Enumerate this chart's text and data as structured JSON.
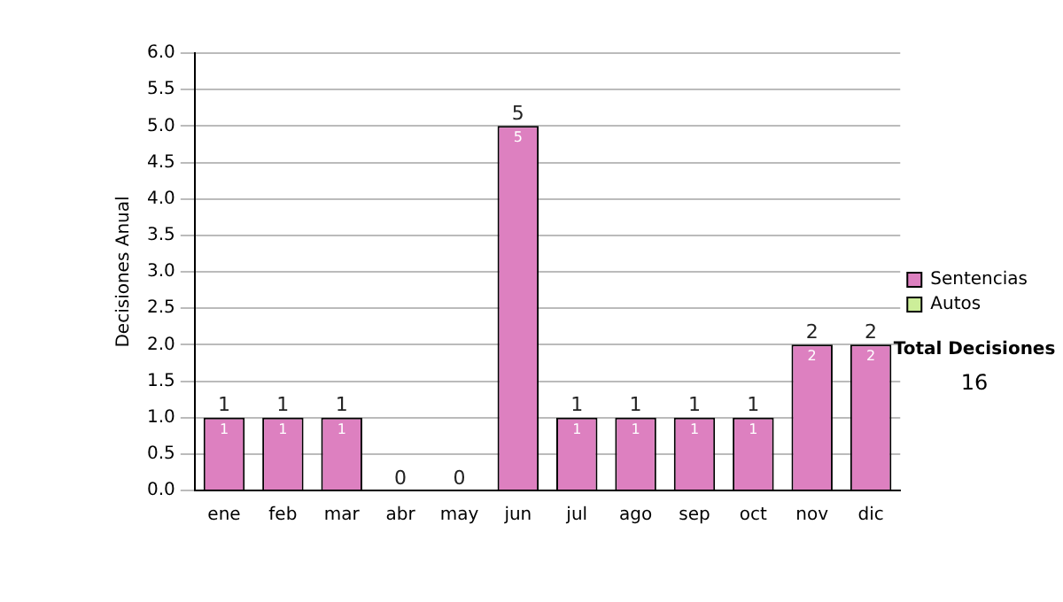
{
  "chart_data": {
    "type": "bar",
    "stacked": true,
    "ylabel": "Decisiones Anual",
    "categories": [
      "ene",
      "feb",
      "mar",
      "abr",
      "may",
      "jun",
      "jul",
      "ago",
      "sep",
      "oct",
      "nov",
      "dic"
    ],
    "series": [
      {
        "name": "Sentencias",
        "color": "#dd80c0",
        "values": [
          1,
          1,
          1,
          0,
          0,
          5,
          1,
          1,
          1,
          1,
          2,
          2
        ],
        "value_labels": [
          "1",
          "1",
          "1",
          null,
          null,
          "5",
          "1",
          "1",
          "1",
          "1",
          "2",
          "2"
        ]
      },
      {
        "name": "Autos",
        "color": "#ccee99",
        "values": [
          0,
          0,
          0,
          0,
          0,
          0,
          0,
          0,
          0,
          0,
          0,
          0
        ]
      }
    ],
    "totals": [
      "1",
      "1",
      "1",
      "0",
      "0",
      "5",
      "1",
      "1",
      "1",
      "1",
      "2",
      "2"
    ],
    "ylim": [
      0,
      6
    ],
    "yticks": [
      {
        "value": 0,
        "label": "0.0"
      },
      {
        "value": 0.5,
        "label": "0.5"
      },
      {
        "value": 1,
        "label": "1.0"
      },
      {
        "value": 1.5,
        "label": "1.5"
      },
      {
        "value": 2,
        "label": "2.0"
      },
      {
        "value": 2.5,
        "label": "2.5"
      },
      {
        "value": 3,
        "label": "3.0"
      },
      {
        "value": 3.5,
        "label": "3.5"
      },
      {
        "value": 4,
        "label": "4.0"
      },
      {
        "value": 4.5,
        "label": "4.5"
      },
      {
        "value": 5,
        "label": "5.0"
      },
      {
        "value": 5.5,
        "label": "5.5"
      },
      {
        "value": 6,
        "label": "6.0"
      }
    ],
    "grid": "y",
    "legend": "right",
    "annotations": [
      "Total Decisiones",
      "16"
    ]
  }
}
